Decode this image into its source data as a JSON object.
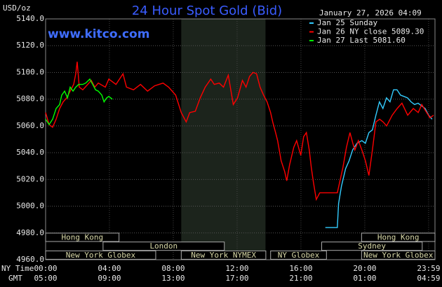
{
  "chart_data": {
    "type": "line",
    "title": "24 Hour Spot Gold (Bid)",
    "y_unit_label": "USD/oz",
    "datetime": "January 27, 2026 04:09",
    "watermark": "www.kitco.com",
    "x_axis_row_labels": [
      "NY Time",
      "GMT"
    ],
    "xlim": [
      0,
      24.4
    ],
    "xticks": [
      {
        "value": 0,
        "label": "00:00"
      },
      {
        "value": 4,
        "label": "04:00"
      },
      {
        "value": 8,
        "label": "08:00"
      },
      {
        "value": 12,
        "label": "12:00"
      },
      {
        "value": 16,
        "label": "16:00"
      },
      {
        "value": 20,
        "label": "20:00"
      },
      {
        "value": 24,
        "label": "23:59"
      }
    ],
    "gmt_labels": [
      "05:00",
      "09:00",
      "13:00",
      "17:00",
      "21:00",
      "01:00",
      "04:59"
    ],
    "ylim": [
      4960,
      5140
    ],
    "yticks": [
      {
        "value": 4960,
        "label": "4960.0"
      },
      {
        "value": 4980,
        "label": "4980.0"
      },
      {
        "value": 5000,
        "label": "5000.0"
      },
      {
        "value": 5020,
        "label": "5020.0"
      },
      {
        "value": 5040,
        "label": "5040.0"
      },
      {
        "value": 5060,
        "label": "5060.0"
      },
      {
        "value": 5080,
        "label": "5080.0"
      },
      {
        "value": 5100,
        "label": "5100.0"
      },
      {
        "value": 5120,
        "label": "5120.0"
      },
      {
        "value": 5140,
        "label": "5140.0"
      }
    ],
    "grid": true,
    "shaded_range": [
      8.5,
      13.78
    ],
    "session_rows": [
      [
        {
          "label": "Hong Kong",
          "start": 0,
          "end": 4.6
        },
        {
          "label": "Hong Kong",
          "start": 19.8,
          "end": 24.4
        }
      ],
      [
        {
          "label": "London",
          "start": 3.6,
          "end": 11.2
        },
        {
          "label": "Sydney",
          "start": 17.3,
          "end": 23.6
        }
      ],
      [
        {
          "label": "New York Globex",
          "start": 0,
          "end": 6.9
        },
        {
          "label": "New York NYMEX",
          "start": 8.5,
          "end": 13.8
        },
        {
          "label": "NY Globex",
          "start": 14.1,
          "end": 17.6
        },
        {
          "label": "New York Globex",
          "start": 19.8,
          "end": 24.4
        }
      ]
    ],
    "series": [
      {
        "name": "Jan 25 Sunday",
        "color": "#33ccff",
        "x": [
          17.53,
          18.28,
          18.36,
          18.54,
          18.8,
          19.02,
          19.24,
          19.51,
          19.82,
          20.04,
          20.26,
          20.48,
          20.7,
          20.92,
          21.14,
          21.36,
          21.58,
          21.8,
          22.02,
          22.24,
          22.46,
          22.68,
          22.9,
          23.12,
          23.34,
          23.56,
          23.78,
          24.0,
          24.22
        ],
        "values": [
          4984,
          4984,
          5002,
          5015,
          5028,
          5034,
          5042,
          5047,
          5049,
          5047,
          5055,
          5057,
          5068,
          5078,
          5073,
          5081,
          5078,
          5087,
          5087,
          5083,
          5082,
          5081,
          5078,
          5076,
          5077,
          5075,
          5073,
          5068,
          5065
        ]
      },
      {
        "name": "Jan 26 NY close 5089.30",
        "color": "#ff0000",
        "x": [
          0,
          0.22,
          0.44,
          0.66,
          0.88,
          1.1,
          1.32,
          1.54,
          1.76,
          1.89,
          1.98,
          2.11,
          2.33,
          2.64,
          2.86,
          3.08,
          3.3,
          3.74,
          3.96,
          4.41,
          4.85,
          5.07,
          5.51,
          5.95,
          6.39,
          6.83,
          7.36,
          7.71,
          8.15,
          8.5,
          8.81,
          9.03,
          9.38,
          9.69,
          10.0,
          10.35,
          10.57,
          10.88,
          11.15,
          11.45,
          11.76,
          12.03,
          12.33,
          12.56,
          12.78,
          13.0,
          13.22,
          13.44,
          13.66,
          13.88,
          14.1,
          14.23,
          14.41,
          14.54,
          14.76,
          14.98,
          15.11,
          15.29,
          15.55,
          15.73,
          15.99,
          16.17,
          16.34,
          16.52,
          16.65,
          16.78,
          16.96,
          17.18,
          17.62,
          18.28,
          18.63,
          18.85,
          19.07,
          19.25,
          19.38,
          19.6,
          19.82,
          20.04,
          20.26,
          20.48,
          20.7,
          20.93,
          21.15,
          21.37,
          21.72,
          22.03,
          22.33,
          22.69,
          23.04,
          23.35,
          23.57,
          23.83,
          24.09,
          24.31
        ],
        "values": [
          5070,
          5061,
          5059,
          5065,
          5073,
          5078,
          5081,
          5086,
          5091,
          5099,
          5108,
          5089,
          5087,
          5091,
          5094,
          5089,
          5092,
          5089,
          5095,
          5091,
          5099,
          5089,
          5087,
          5091,
          5086,
          5090,
          5092,
          5089,
          5083,
          5070,
          5063,
          5070,
          5071,
          5081,
          5089,
          5095,
          5091,
          5092,
          5089,
          5098,
          5076,
          5081,
          5094,
          5089,
          5097,
          5100,
          5099,
          5089,
          5083,
          5078,
          5070,
          5063,
          5055,
          5049,
          5034,
          5026,
          5019,
          5031,
          5044,
          5049,
          5038,
          5052,
          5055,
          5042,
          5029,
          5018,
          5005,
          5010,
          5010,
          5010,
          5029,
          5044,
          5055,
          5047,
          5042,
          5049,
          5042,
          5034,
          5023,
          5042,
          5063,
          5065,
          5063,
          5060,
          5068,
          5073,
          5077,
          5068,
          5073,
          5070,
          5076,
          5071,
          5066,
          5068
        ]
      },
      {
        "name": "Jan 27 Last 5081.60",
        "color": "#00ff00",
        "x": [
          0,
          0.22,
          0.44,
          0.66,
          0.88,
          1.01,
          1.19,
          1.37,
          1.54,
          1.72,
          1.89,
          2.07,
          2.33,
          2.51,
          2.77,
          2.95,
          3.13,
          3.3,
          3.52,
          3.66,
          3.83,
          3.96,
          4.18
        ],
        "values": [
          5065,
          5061,
          5065,
          5073,
          5076,
          5083,
          5086,
          5081,
          5089,
          5086,
          5089,
          5091,
          5091,
          5092,
          5095,
          5091,
          5087,
          5086,
          5083,
          5078,
          5081,
          5082,
          5080
        ]
      }
    ]
  }
}
